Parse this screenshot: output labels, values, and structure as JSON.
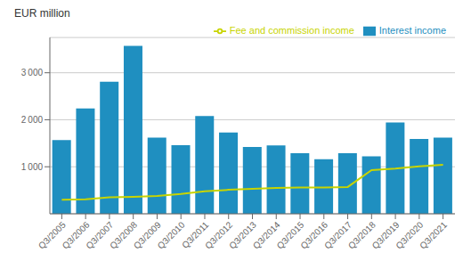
{
  "chart_data": {
    "type": "bar",
    "ylabel": "EUR million",
    "categories": [
      "Q3/2005",
      "Q3/2006",
      "Q3/2007",
      "Q3/2008",
      "Q3/2009",
      "Q3/2010",
      "Q3/2011",
      "Q3/2012",
      "Q3/2013",
      "Q3/2014",
      "Q3/2015",
      "Q3/2016",
      "Q3/2017",
      "Q3/2018",
      "Q3/2019",
      "Q3/2020",
      "Q3/2021"
    ],
    "series": [
      {
        "name": "Interest income",
        "type": "bar",
        "color": "#1f8fc0",
        "values": [
          1570,
          2240,
          2810,
          3570,
          1620,
          1460,
          2080,
          1730,
          1420,
          1455,
          1290,
          1160,
          1290,
          1220,
          1940,
          1590,
          1620
        ]
      },
      {
        "name": "Fee and commission income",
        "type": "line",
        "color": "#c8d400",
        "values": [
          300,
          310,
          350,
          360,
          380,
          420,
          480,
          510,
          530,
          550,
          560,
          560,
          570,
          930,
          960,
          1010,
          1040
        ]
      }
    ],
    "ylim": [
      0,
      3750
    ],
    "yticks": [
      {
        "value": 1000,
        "label": "1 000"
      },
      {
        "value": 2000,
        "label": "2 000"
      },
      {
        "value": 3000,
        "label": "3 000"
      }
    ],
    "grid": true,
    "legend": "upper right"
  }
}
